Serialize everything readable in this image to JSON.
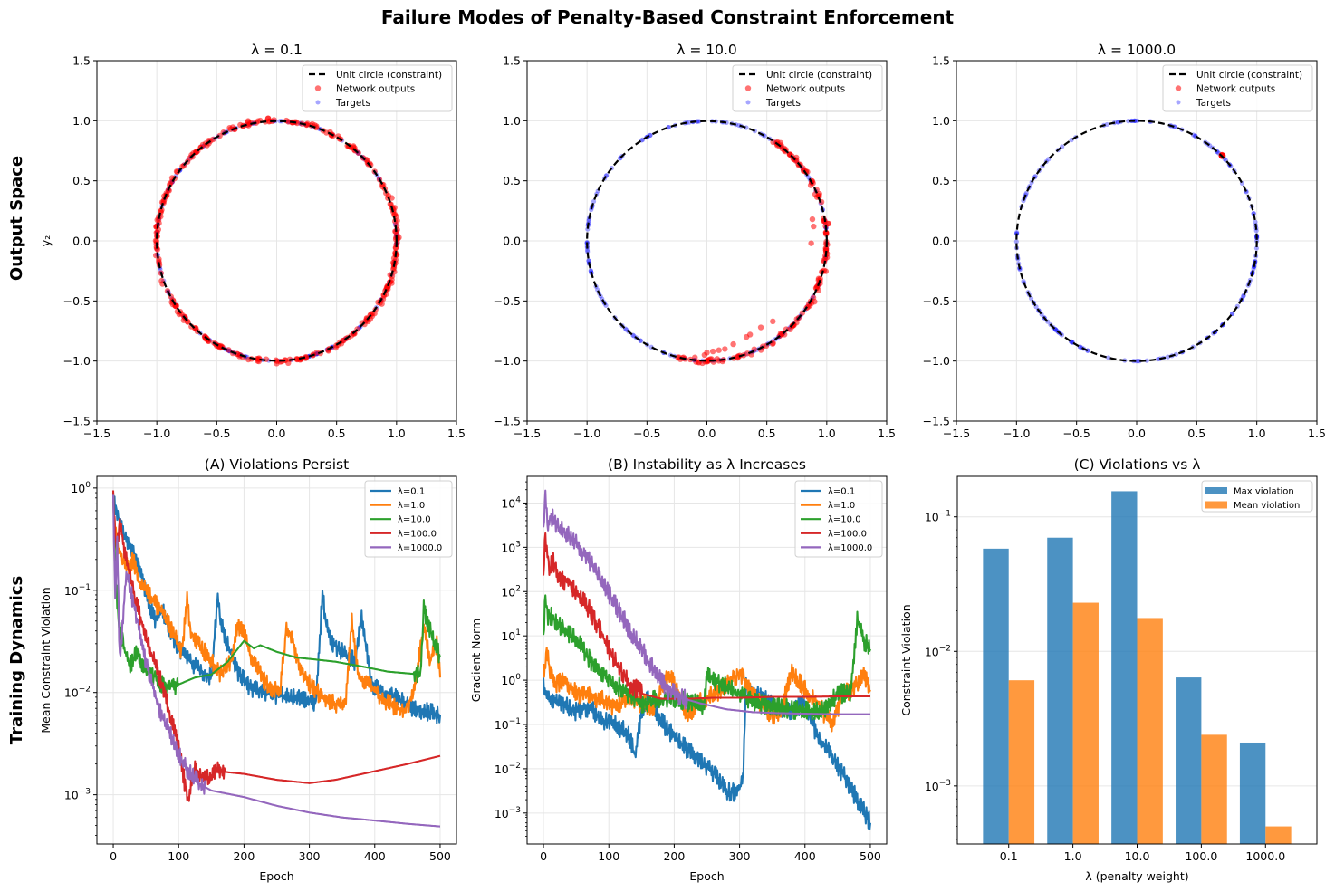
{
  "figure": {
    "suptitle": "Failure Modes of Penalty-Based Constraint Enforcement",
    "row_labels": [
      "Output Space",
      "Training Dynamics"
    ]
  },
  "chart_data": [
    {
      "id": "scatter-l0.1",
      "type": "scatter",
      "title": "λ = 0.1",
      "xlabel": "",
      "ylabel": "y₂",
      "xlim": [
        -1.5,
        1.5
      ],
      "ylim": [
        -1.5,
        1.5
      ],
      "xticks": [
        "−1.5",
        "−1.0",
        "−0.5",
        "0.0",
        "0.5",
        "1.0",
        "1.5"
      ],
      "yticks": [
        "−1.5",
        "−1.0",
        "−0.5",
        "0.0",
        "0.5",
        "1.0",
        "1.5"
      ],
      "grid": true,
      "legend": {
        "position": "top-right",
        "entries": [
          "Unit circle (constraint)",
          "Network outputs",
          "Targets"
        ]
      },
      "constraint": {
        "shape": "unit circle",
        "radius": 1.0
      },
      "outputs_description": "Network outputs spread all around the unit circle with small radial deviations (up to ~1.06), bulges near (1.05, -0.05) and (0.55, -0.85)",
      "outputs_coverage": {
        "angle_ranges_deg": [
          [
            0,
            360
          ]
        ],
        "radial_noise": 0.025
      },
      "targets_coverage": {
        "angle_ranges_deg": [
          [
            0,
            360
          ]
        ]
      }
    },
    {
      "id": "scatter-l10",
      "type": "scatter",
      "title": "λ = 10.0",
      "xlabel": "",
      "ylabel": "",
      "xlim": [
        -1.5,
        1.5
      ],
      "ylim": [
        -1.5,
        1.5
      ],
      "xticks": [
        "−1.5",
        "−1.0",
        "−0.5",
        "0.0",
        "0.5",
        "1.0",
        "1.5"
      ],
      "yticks": [
        "−1.5",
        "−1.0",
        "−0.5",
        "0.0",
        "0.5",
        "1.0",
        "1.5"
      ],
      "grid": true,
      "legend": {
        "position": "top-right",
        "entries": [
          "Unit circle (constraint)",
          "Network outputs",
          "Targets"
        ]
      },
      "constraint": {
        "shape": "unit circle",
        "radius": 1.0
      },
      "outputs_description": "Network outputs collapse onto the right arc from ~(0.6, 0.9) to ~(-0.25, -1.0), with some points inside the circle near (0.55,-0.67), (0.35,-0.77), (0.2,-0.85)",
      "outputs_coverage": {
        "angle_ranges_deg": [
          [
            -104,
            57
          ]
        ],
        "radial_noise": 0.03
      },
      "outputs_inner_points": [
        [
          0.55,
          -0.67
        ],
        [
          0.45,
          -0.72
        ],
        [
          0.36,
          -0.78
        ],
        [
          0.33,
          -0.8
        ],
        [
          0.22,
          -0.86
        ],
        [
          0.15,
          -0.9
        ],
        [
          0.1,
          -0.91
        ],
        [
          0.05,
          -0.92
        ],
        [
          -0.02,
          -0.95
        ],
        [
          -0.1,
          -0.97
        ],
        [
          0.0,
          -0.93
        ],
        [
          0.87,
          -0.02
        ],
        [
          0.89,
          0.12
        ],
        [
          0.88,
          0.18
        ]
      ],
      "targets_coverage": {
        "angle_ranges_deg": [
          [
            0,
            360
          ]
        ]
      }
    },
    {
      "id": "scatter-l1000",
      "type": "scatter",
      "title": "λ = 1000.0",
      "xlabel": "",
      "ylabel": "",
      "xlim": [
        -1.5,
        1.5
      ],
      "ylim": [
        -1.5,
        1.5
      ],
      "xticks": [
        "−1.5",
        "−1.0",
        "−0.5",
        "0.0",
        "0.5",
        "1.0",
        "1.5"
      ],
      "yticks": [
        "−1.5",
        "−1.0",
        "−0.5",
        "0.0",
        "0.5",
        "1.0",
        "1.5"
      ],
      "grid": true,
      "legend": {
        "position": "top-right",
        "entries": [
          "Unit circle (constraint)",
          "Network outputs",
          "Targets"
        ]
      },
      "constraint": {
        "shape": "unit circle",
        "radius": 1.0
      },
      "outputs_description": "All network outputs collapse to a single point near (0.71, 0.71)",
      "outputs_cluster": [
        0.71,
        0.71
      ],
      "targets_coverage": {
        "angle_ranges_deg": [
          [
            0,
            360
          ]
        ]
      }
    },
    {
      "id": "violations-persist",
      "type": "line",
      "title": "(A) Violations Persist",
      "xlabel": "Epoch",
      "ylabel": "Mean Constraint Violation",
      "xlim": [
        -25,
        525
      ],
      "ylim": [
        0.00033,
        1.3
      ],
      "yscale": "log",
      "xticks": [
        "0",
        "100",
        "200",
        "300",
        "400",
        "500"
      ],
      "yticks": [
        "10^0",
        "10^-1",
        "10^-2",
        "10^-3"
      ],
      "grid": true,
      "legend": {
        "position": "top-right"
      },
      "series": [
        {
          "name": "λ=0.1",
          "color": "#1f77b4",
          "x": [
            0,
            5,
            15,
            25,
            35,
            45,
            55,
            65,
            75,
            90,
            110,
            130,
            150,
            160,
            163,
            175,
            190,
            210,
            230,
            260,
            290,
            310,
            320,
            325,
            335,
            350,
            370,
            380,
            395,
            410,
            430,
            460,
            500
          ],
          "y": [
            0.75,
            0.6,
            0.35,
            0.28,
            0.2,
            0.13,
            0.07,
            0.05,
            0.065,
            0.035,
            0.022,
            0.017,
            0.014,
            0.09,
            0.05,
            0.03,
            0.016,
            0.011,
            0.01,
            0.0092,
            0.0085,
            0.008,
            0.095,
            0.05,
            0.03,
            0.025,
            0.02,
            0.055,
            0.012,
            0.01,
            0.009,
            0.007,
            0.006
          ]
        },
        {
          "name": "λ=1.0",
          "color": "#ff7f0e",
          "x": [
            0,
            5,
            15,
            25,
            30,
            40,
            50,
            60,
            75,
            90,
            105,
            113,
            118,
            130,
            150,
            165,
            180,
            190,
            200,
            210,
            225,
            240,
            255,
            265,
            275,
            290,
            305,
            320,
            340,
            355,
            365,
            375,
            390,
            410,
            430,
            445,
            460,
            475,
            485,
            495,
            500
          ],
          "y": [
            0.6,
            0.3,
            0.2,
            0.15,
            0.2,
            0.12,
            0.1,
            0.08,
            0.06,
            0.04,
            0.025,
            0.08,
            0.04,
            0.03,
            0.02,
            0.015,
            0.02,
            0.045,
            0.04,
            0.022,
            0.015,
            0.011,
            0.01,
            0.045,
            0.03,
            0.015,
            0.011,
            0.009,
            0.0078,
            0.0072,
            0.05,
            0.015,
            0.012,
            0.009,
            0.0072,
            0.0065,
            0.01,
            0.045,
            0.02,
            0.03,
            0.014
          ]
        },
        {
          "name": "λ=10.0",
          "color": "#2ca02c",
          "x": [
            0,
            3,
            8,
            15,
            25,
            35,
            50,
            65,
            80,
            100,
            125,
            150,
            175,
            200,
            215,
            225,
            250,
            280,
            310,
            340,
            380,
            420,
            470,
            475,
            485,
            500
          ],
          "y": [
            0.9,
            0.15,
            0.05,
            0.03,
            0.018,
            0.025,
            0.016,
            0.014,
            0.011,
            0.012,
            0.014,
            0.015,
            0.02,
            0.032,
            0.027,
            0.029,
            0.025,
            0.022,
            0.021,
            0.02,
            0.018,
            0.016,
            0.015,
            0.065,
            0.04,
            0.022
          ]
        },
        {
          "name": "λ=100.0",
          "color": "#d62728",
          "x": [
            0,
            5,
            10,
            20,
            30,
            40,
            50,
            60,
            70,
            80,
            90,
            100,
            110,
            115,
            125,
            140,
            160,
            200,
            250,
            300,
            340,
            400,
            450,
            500
          ],
          "y": [
            0.8,
            0.25,
            0.45,
            0.2,
            0.1,
            0.06,
            0.035,
            0.022,
            0.015,
            0.009,
            0.005,
            0.003,
            0.0012,
            0.00085,
            0.0018,
            0.0014,
            0.0017,
            0.0016,
            0.0014,
            0.0013,
            0.0014,
            0.0017,
            0.002,
            0.0024
          ]
        },
        {
          "name": "λ=1000.0",
          "color": "#9467bd",
          "x": [
            0,
            3,
            6,
            10,
            20,
            30,
            40,
            50,
            60,
            70,
            80,
            90,
            100,
            110,
            120,
            130,
            150,
            200,
            250,
            300,
            350,
            400,
            450,
            500
          ],
          "y": [
            0.7,
            0.08,
            0.3,
            0.02,
            0.15,
            0.08,
            0.04,
            0.02,
            0.012,
            0.007,
            0.005,
            0.0035,
            0.0025,
            0.0019,
            0.0016,
            0.0013,
            0.0011,
            0.00095,
            0.00078,
            0.00067,
            0.0006,
            0.00056,
            0.00052,
            0.00049
          ]
        }
      ]
    },
    {
      "id": "instability",
      "type": "line",
      "title": "(B) Instability as λ Increases",
      "xlabel": "Epoch",
      "ylabel": "Gradient Norm",
      "xlim": [
        -25,
        525
      ],
      "ylim": [
        0.0002,
        40000
      ],
      "yscale": "log",
      "xticks": [
        "0",
        "100",
        "200",
        "300",
        "400",
        "500"
      ],
      "yticks": [
        "10^-3",
        "10^-2",
        "10^-1",
        "10^0",
        "10^1",
        "10^2",
        "10^3",
        "10^4"
      ],
      "grid": true,
      "legend": {
        "position": "top-right"
      },
      "series": [
        {
          "name": "λ=0.1",
          "color": "#1f77b4",
          "x": [
            0,
            10,
            30,
            50,
            70,
            90,
            110,
            130,
            140,
            150,
            160,
            175,
            200,
            230,
            260,
            280,
            295,
            305,
            310,
            320,
            340,
            360,
            380,
            400,
            420,
            440,
            460,
            480,
            500
          ],
          "y": [
            0.7,
            0.4,
            0.3,
            0.2,
            0.25,
            0.12,
            0.1,
            0.06,
            0.02,
            0.2,
            0.4,
            0.15,
            0.05,
            0.02,
            0.008,
            0.003,
            0.003,
            0.005,
            0.8,
            0.5,
            0.4,
            0.25,
            0.2,
            0.3,
            0.05,
            0.02,
            0.007,
            0.002,
            0.0006
          ]
        },
        {
          "name": "λ=1.0",
          "color": "#ff7f0e",
          "x": [
            0,
            5,
            15,
            30,
            50,
            70,
            90,
            110,
            130,
            150,
            170,
            190,
            200,
            220,
            240,
            270,
            300,
            320,
            340,
            360,
            380,
            400,
            420,
            440,
            460,
            480,
            490,
            500
          ],
          "y": [
            1.5,
            4.0,
            0.8,
            1.0,
            0.5,
            0.45,
            0.35,
            0.25,
            0.4,
            0.3,
            0.25,
            1.5,
            0.8,
            0.15,
            0.35,
            0.6,
            1.5,
            0.5,
            0.2,
            0.15,
            1.5,
            0.6,
            0.3,
            0.1,
            0.5,
            0.8,
            1.2,
            0.6
          ]
        },
        {
          "name": "λ=10.0",
          "color": "#2ca02c",
          "x": [
            0,
            3,
            6,
            15,
            30,
            50,
            70,
            90,
            110,
            130,
            150,
            170,
            200,
            230,
            245,
            250,
            270,
            290,
            310,
            330,
            360,
            400,
            430,
            450,
            470,
            480,
            490,
            500
          ],
          "y": [
            8.0,
            80.0,
            30.0,
            25.0,
            15.0,
            8.0,
            3.0,
            1.5,
            0.8,
            0.5,
            0.3,
            0.35,
            0.4,
            0.3,
            0.25,
            1.5,
            0.8,
            0.6,
            0.4,
            0.3,
            0.25,
            0.2,
            0.2,
            0.5,
            0.5,
            25.0,
            8.0,
            5.0
          ]
        },
        {
          "name": "λ=100.0",
          "color": "#d62728",
          "x": [
            0,
            3,
            8,
            15,
            25,
            40,
            55,
            70,
            85,
            100,
            115,
            130,
            150,
            180,
            220,
            260,
            300,
            350,
            400,
            450,
            500
          ],
          "y": [
            200.0,
            2000.0,
            300.0,
            500.0,
            200.0,
            150.0,
            80.0,
            40.0,
            15.0,
            5.0,
            2.0,
            0.9,
            0.5,
            0.38,
            0.38,
            0.4,
            0.4,
            0.42,
            0.42,
            0.43,
            0.43
          ]
        },
        {
          "name": "λ=1000.0",
          "color": "#9467bd",
          "x": [
            0,
            3,
            6,
            12,
            20,
            30,
            50,
            70,
            90,
            110,
            130,
            150,
            170,
            190,
            210,
            240,
            280,
            320,
            360,
            400,
            450,
            500
          ],
          "y": [
            2500.0,
            15000.0,
            3000.0,
            5000.0,
            3000.0,
            2500.0,
            1200.0,
            500.0,
            150.0,
            50.0,
            15.0,
            5.0,
            1.5,
            0.6,
            0.4,
            0.3,
            0.22,
            0.19,
            0.18,
            0.175,
            0.17,
            0.17
          ]
        }
      ]
    },
    {
      "id": "violations-vs-lambda",
      "type": "bar",
      "title": "(C) Violations vs λ",
      "xlabel": "λ (penalty weight)",
      "ylabel": "Constraint Violation",
      "yscale": "log",
      "ylim": [
        0.00037,
        0.2
      ],
      "categories": [
        "0.1",
        "1.0",
        "10.0",
        "100.0",
        "1000.0"
      ],
      "yticks": [
        "10^-3",
        "10^-2",
        "10^-1"
      ],
      "grid": true,
      "legend": {
        "position": "top-right"
      },
      "series": [
        {
          "name": "Max violation",
          "color": "#1f77b4",
          "values": [
            0.058,
            0.07,
            0.155,
            0.0064,
            0.0021
          ]
        },
        {
          "name": "Mean violation",
          "color": "#ff7f0e",
          "values": [
            0.0061,
            0.023,
            0.0177,
            0.0024,
            0.0005
          ]
        }
      ]
    }
  ]
}
